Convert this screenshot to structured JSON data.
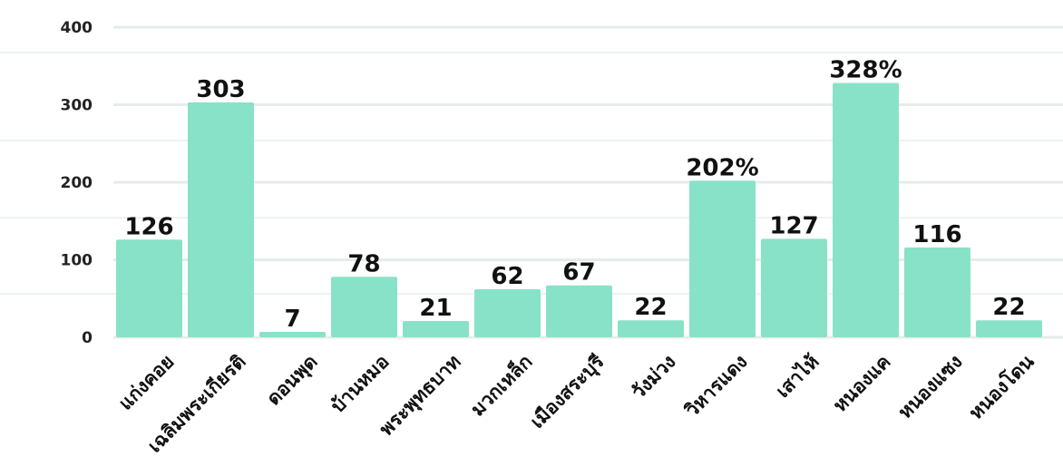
{
  "colors": {
    "bar": "#88e2c8",
    "grid": "#e6ece9",
    "text": "#111111"
  },
  "chart_data": {
    "type": "bar",
    "categories": [
      "แก่งคอย",
      "เฉลิมพระเกียรติ",
      "ดอนพุด",
      "บ้านหมอ",
      "พระพุทธบาท",
      "มวกเหล็ก",
      "เมืองสระบุรี",
      "วังม่วง",
      "วิหารแดง",
      "เสาไห้",
      "หนองแค",
      "หนองแซง",
      "หนองโดน"
    ],
    "values": [
      126,
      303,
      7,
      78,
      21,
      62,
      67,
      22,
      202,
      127,
      328,
      116,
      22
    ],
    "data_labels": [
      "126",
      "303",
      "7",
      "78",
      "21",
      "62",
      "67",
      "22",
      "202%",
      "127",
      "328%",
      "116",
      "22"
    ],
    "yticks": [
      "0",
      "100",
      "200",
      "300",
      "400"
    ],
    "ylim": [
      0,
      400
    ],
    "grid": true,
    "legend": "none"
  }
}
